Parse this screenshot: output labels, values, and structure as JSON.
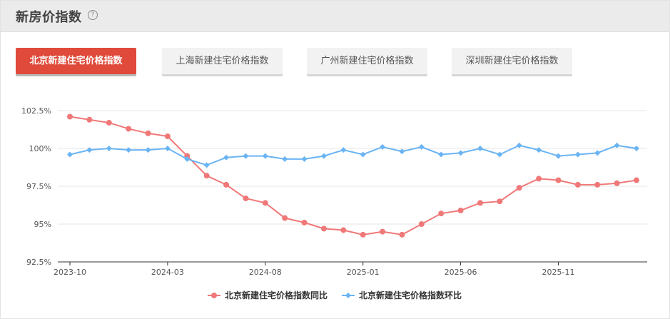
{
  "header": {
    "title": "新房价指数",
    "help_icon": "question-circle-icon"
  },
  "tabs": [
    {
      "label": "北京新建住宅价格指数",
      "active": true
    },
    {
      "label": "上海新建住宅价格指数",
      "active": false
    },
    {
      "label": "广州新建住宅价格指数",
      "active": false
    },
    {
      "label": "深圳新建住宅价格指数",
      "active": false
    }
  ],
  "colors": {
    "accent": "#e04a3a",
    "series_yoy": "#f07878",
    "series_mom": "#6ab4f4"
  },
  "chart_data": {
    "type": "line",
    "x": [
      "2023-10",
      "2023-11",
      "2023-12",
      "2024-01",
      "2024-02",
      "2024-03",
      "2024-04",
      "2024-05",
      "2024-06",
      "2024-07",
      "2024-08",
      "2024-09",
      "2024-10",
      "2024-11",
      "2024-12",
      "2025-01",
      "2025-02",
      "2025-03",
      "2025-04",
      "2025-05",
      "2025-06",
      "2025-07",
      "2025-08",
      "2025-09",
      "2025-10",
      "2025-11",
      "2025-12",
      "2026-01",
      "2026-02",
      "2026-03"
    ],
    "x_tick_labels": [
      "2023-10",
      "2024-03",
      "2024-08",
      "2025-01",
      "2025-06",
      "2025-11"
    ],
    "y_tick_labels": [
      "102.5%",
      "100%",
      "97.5%",
      "95%",
      "92.5%"
    ],
    "y_ticks": [
      102.5,
      100,
      97.5,
      95,
      92.5
    ],
    "ylim": [
      92.5,
      102.5
    ],
    "grid": true,
    "legend_position": "bottom-center",
    "series": [
      {
        "name": "北京新建住宅价格指数同比",
        "marker": "circle",
        "values": [
          102.1,
          101.9,
          101.7,
          101.3,
          101.0,
          100.8,
          99.5,
          98.2,
          97.6,
          96.7,
          96.4,
          95.4,
          95.1,
          94.7,
          94.6,
          94.3,
          94.5,
          94.3,
          95.0,
          95.7,
          95.9,
          96.4,
          96.5,
          97.4,
          98.0,
          97.9,
          97.6,
          97.6,
          97.7,
          97.9
        ]
      },
      {
        "name": "北京新建住宅价格指数环比",
        "marker": "diamond",
        "values": [
          99.6,
          99.9,
          100.0,
          99.9,
          99.9,
          100.0,
          99.3,
          98.9,
          99.4,
          99.5,
          99.5,
          99.3,
          99.3,
          99.5,
          99.9,
          99.6,
          100.1,
          99.8,
          100.1,
          99.6,
          99.7,
          100.0,
          99.6,
          100.2,
          99.9,
          99.5,
          99.6,
          99.7,
          100.2,
          100.0
        ]
      }
    ]
  }
}
